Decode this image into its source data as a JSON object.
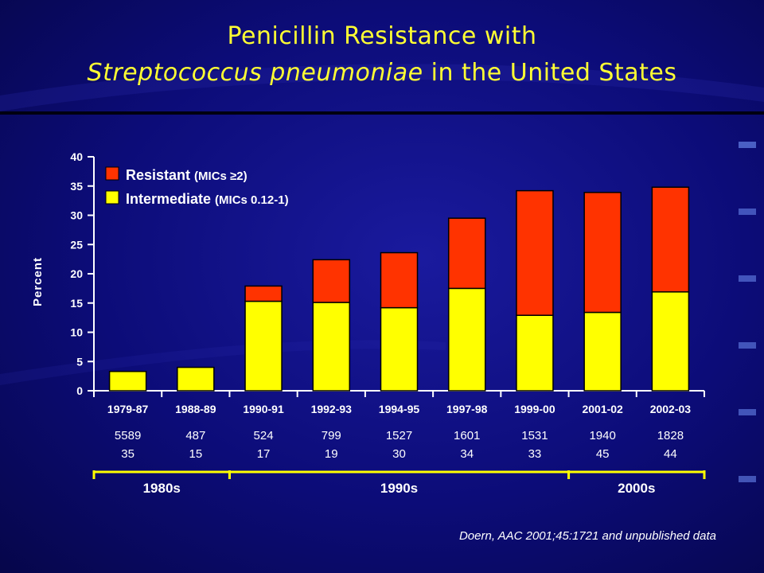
{
  "title_line1": "Penicillin Resistance with",
  "title_line2_italic": "Streptococcus pneumoniae",
  "title_line2_rest": " in the United States",
  "citation": "Doern, AAC 2001;45:1721 and unpublished data",
  "colors": {
    "resistant": "#ff3300",
    "intermediate": "#ffff00",
    "background": "#0c0c78",
    "title": "#ffff33"
  },
  "chart_data": {
    "type": "bar",
    "stacked": true,
    "ylabel": "Percent",
    "ylim": [
      0,
      40
    ],
    "yticks": [
      0,
      5,
      10,
      15,
      20,
      25,
      30,
      35,
      40
    ],
    "categories": [
      "1979-87",
      "1988-89",
      "1990-91",
      "1992-93",
      "1994-95",
      "1997-98",
      "1999-00",
      "2001-02",
      "2002-03"
    ],
    "series": [
      {
        "name": "Intermediate",
        "name_detail": "(MICs 0.12-1)",
        "values": [
          3.3,
          4.0,
          15.3,
          15.1,
          14.2,
          17.5,
          12.9,
          13.4,
          16.9
        ]
      },
      {
        "name": "Resistant",
        "name_detail": "(MICs ≥2)",
        "values": [
          0,
          0,
          2.6,
          7.3,
          9.4,
          12.0,
          21.3,
          20.5,
          17.9
        ]
      }
    ],
    "counts_row1": [
      "5589",
      "487",
      "524",
      "799",
      "1527",
      "1601",
      "1531",
      "1940",
      "1828"
    ],
    "counts_row2": [
      "35",
      "15",
      "17",
      "19",
      "30",
      "34",
      "33",
      "45",
      "44"
    ],
    "decades": [
      {
        "label": "1980s",
        "first": 0,
        "last": 1
      },
      {
        "label": "1990s",
        "first": 2,
        "last": 6
      },
      {
        "label": "2000s",
        "first": 7,
        "last": 8
      }
    ],
    "legend_position": "top-left"
  }
}
